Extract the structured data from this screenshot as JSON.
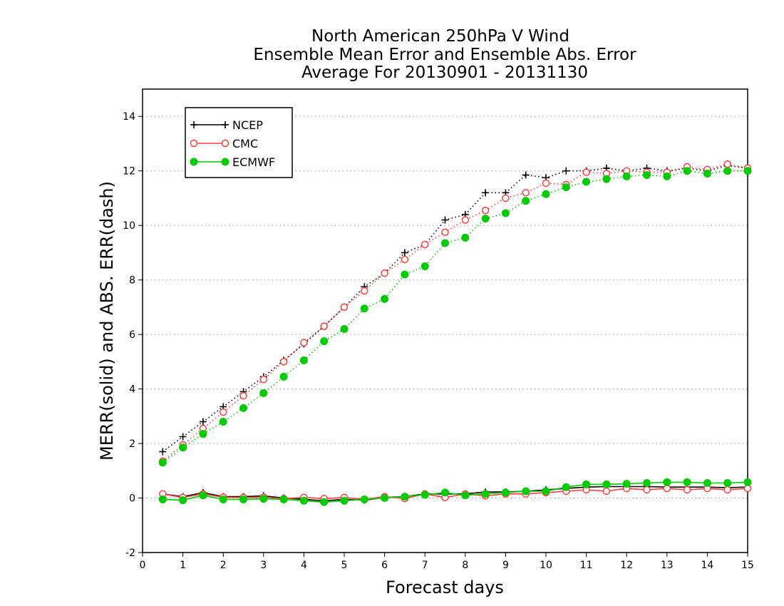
{
  "chart_data": {
    "type": "line",
    "title": [
      "North American 250hPa V Wind",
      "Ensemble Mean Error and Ensemble Abs. Error",
      "Average For 20130901 - 20131130"
    ],
    "xlabel": "Forecast days",
    "ylabel": "MERR(solid) and ABS. ERR(dash)",
    "xlim": [
      0,
      15
    ],
    "ylim": [
      -2,
      15
    ],
    "xticks": [
      0,
      1,
      2,
      3,
      4,
      5,
      6,
      7,
      8,
      9,
      10,
      11,
      12,
      13,
      14,
      15
    ],
    "yticks": [
      -2,
      0,
      2,
      4,
      6,
      8,
      10,
      12,
      14
    ],
    "grid": "horizontal dotted",
    "legend_position": "top-left",
    "x": [
      0.5,
      1,
      1.5,
      2,
      2.5,
      3,
      3.5,
      4,
      4.5,
      5,
      5.5,
      6,
      6.5,
      7,
      7.5,
      8,
      8.5,
      9,
      9.5,
      10,
      10.5,
      11,
      11.5,
      12,
      12.5,
      13,
      13.5,
      14,
      14.5,
      15
    ],
    "series": [
      {
        "name": "NCEP",
        "color": "#000000",
        "marker": "plus",
        "abs_err": [
          1.7,
          2.25,
          2.8,
          3.35,
          3.9,
          4.45,
          5.05,
          5.65,
          6.3,
          7.0,
          7.75,
          8.25,
          9.0,
          9.3,
          10.2,
          10.4,
          11.2,
          11.2,
          11.85,
          11.75,
          12.0,
          12.0,
          12.1,
          12.0,
          12.1,
          12.0,
          12.1,
          12.0,
          12.2,
          12.1
        ],
        "mean_err": [
          0.15,
          0.05,
          0.2,
          0.05,
          0.05,
          0.08,
          0.0,
          -0.05,
          -0.1,
          -0.05,
          -0.08,
          0.02,
          0.05,
          0.15,
          0.15,
          0.15,
          0.22,
          0.22,
          0.25,
          0.3,
          0.35,
          0.4,
          0.42,
          0.42,
          0.42,
          0.4,
          0.4,
          0.4,
          0.38,
          0.4
        ]
      },
      {
        "name": "CMC",
        "color": "#ff4040",
        "marker": "open-circle",
        "abs_err": [
          1.35,
          1.95,
          2.55,
          3.15,
          3.75,
          4.35,
          5.0,
          5.7,
          6.3,
          7.0,
          7.6,
          8.25,
          8.75,
          9.3,
          9.75,
          10.2,
          10.55,
          11.0,
          11.2,
          11.55,
          11.5,
          11.95,
          11.9,
          12.0,
          11.95,
          11.95,
          12.15,
          12.05,
          12.25,
          12.1
        ],
        "mean_err": [
          0.15,
          0.02,
          0.15,
          0.03,
          0.02,
          0.03,
          -0.02,
          0.02,
          -0.02,
          0.02,
          -0.05,
          0.05,
          -0.02,
          0.15,
          0.02,
          0.15,
          0.08,
          0.15,
          0.15,
          0.2,
          0.25,
          0.3,
          0.25,
          0.35,
          0.3,
          0.35,
          0.3,
          0.35,
          0.3,
          0.35
        ]
      },
      {
        "name": "ECMWF",
        "color": "#00cc00",
        "marker": "filled-circle",
        "abs_err": [
          1.3,
          1.85,
          2.35,
          2.8,
          3.3,
          3.85,
          4.45,
          5.05,
          5.75,
          6.2,
          6.95,
          7.3,
          8.2,
          8.5,
          9.35,
          9.55,
          10.25,
          10.45,
          10.9,
          11.15,
          11.4,
          11.6,
          11.7,
          11.8,
          11.85,
          11.8,
          12.0,
          11.9,
          12.0,
          12.0
        ],
        "mean_err": [
          -0.05,
          -0.08,
          0.1,
          -0.05,
          -0.05,
          -0.03,
          -0.05,
          -0.1,
          -0.15,
          -0.1,
          -0.05,
          0.0,
          0.05,
          0.12,
          0.2,
          0.1,
          0.15,
          0.2,
          0.25,
          0.25,
          0.4,
          0.5,
          0.5,
          0.52,
          0.55,
          0.58,
          0.58,
          0.55,
          0.55,
          0.58
        ]
      }
    ]
  }
}
